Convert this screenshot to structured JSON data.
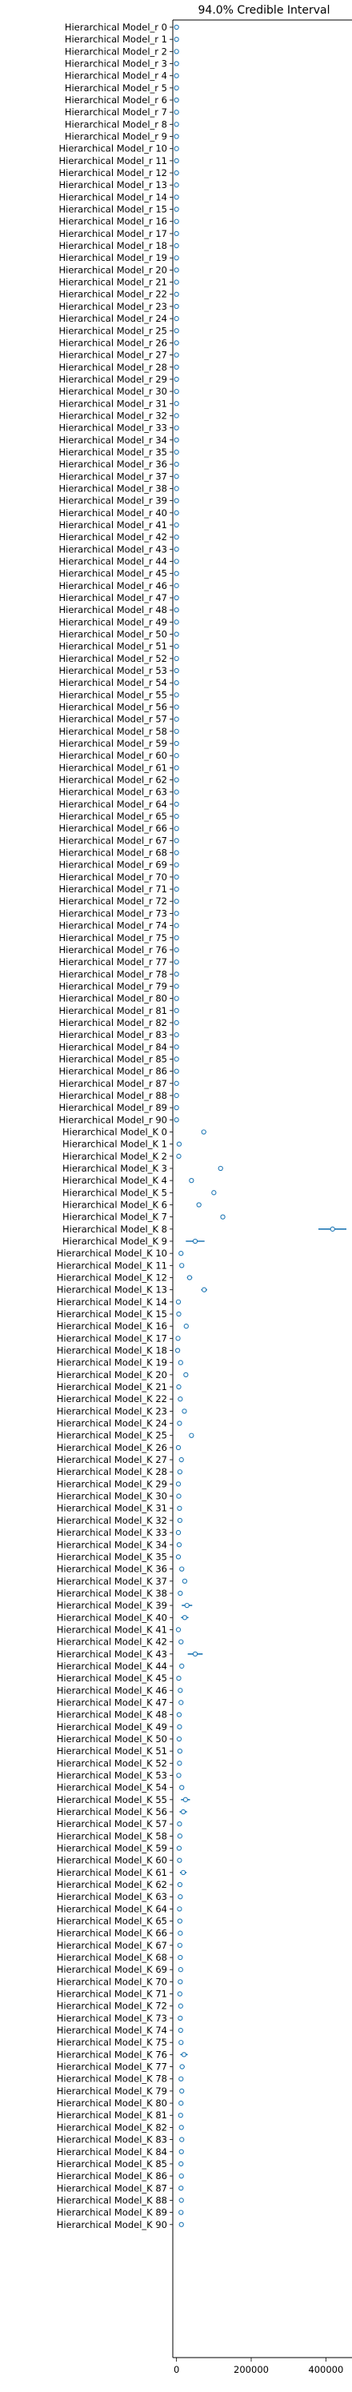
{
  "chart_data": {
    "type": "forest",
    "title": "94.0% Credible Interval",
    "xlabel": "",
    "ylabel": "",
    "xlim": [
      -10000,
      470000
    ],
    "x_ticks": [
      0,
      200000,
      400000
    ],
    "x_tick_labels": [
      "0",
      "200000",
      "400000"
    ],
    "grid": false,
    "colors": {
      "interval": "#1f77b4",
      "point_fill": "#ffffff",
      "axis": "#000000"
    },
    "r_rows": {
      "label_prefix": "Hierarchical Model_r ",
      "count": 91,
      "point": 0,
      "hdi": [
        0,
        0
      ]
    },
    "K_rows": [
      {
        "label": "Hierarchical Model_K 0",
        "point": 73000,
        "hdi": [
          71000,
          75000
        ]
      },
      {
        "label": "Hierarchical Model_K 1",
        "point": 7000,
        "hdi": [
          5000,
          9000
        ]
      },
      {
        "label": "Hierarchical Model_K 2",
        "point": 6000,
        "hdi": [
          4000,
          8000
        ]
      },
      {
        "label": "Hierarchical Model_K 3",
        "point": 118000,
        "hdi": [
          114000,
          122000
        ]
      },
      {
        "label": "Hierarchical Model_K 4",
        "point": 40000,
        "hdi": [
          37000,
          43000
        ]
      },
      {
        "label": "Hierarchical Model_K 5",
        "point": 100000,
        "hdi": [
          96000,
          104000
        ]
      },
      {
        "label": "Hierarchical Model_K 6",
        "point": 60000,
        "hdi": [
          57000,
          63000
        ]
      },
      {
        "label": "Hierarchical Model_K 7",
        "point": 124000,
        "hdi": [
          120000,
          128000
        ]
      },
      {
        "label": "Hierarchical Model_K 8",
        "point": 418000,
        "hdi": [
          380000,
          455000
        ]
      },
      {
        "label": "Hierarchical Model_K 9",
        "point": 50000,
        "hdi": [
          25000,
          75000
        ]
      },
      {
        "label": "Hierarchical Model_K 10",
        "point": 12000,
        "hdi": [
          8000,
          16000
        ]
      },
      {
        "label": "Hierarchical Model_K 11",
        "point": 14000,
        "hdi": [
          9000,
          19000
        ]
      },
      {
        "label": "Hierarchical Model_K 12",
        "point": 35000,
        "hdi": [
          28000,
          42000
        ]
      },
      {
        "label": "Hierarchical Model_K 13",
        "point": 74000,
        "hdi": [
          66000,
          82000
        ]
      },
      {
        "label": "Hierarchical Model_K 14",
        "point": 5000,
        "hdi": [
          2000,
          8000
        ]
      },
      {
        "label": "Hierarchical Model_K 15",
        "point": 6000,
        "hdi": [
          3000,
          9000
        ]
      },
      {
        "label": "Hierarchical Model_K 16",
        "point": 26000,
        "hdi": [
          22000,
          30000
        ]
      },
      {
        "label": "Hierarchical Model_K 17",
        "point": 4000,
        "hdi": [
          2000,
          6000
        ]
      },
      {
        "label": "Hierarchical Model_K 18",
        "point": 3000,
        "hdi": [
          1000,
          5000
        ]
      },
      {
        "label": "Hierarchical Model_K 19",
        "point": 11000,
        "hdi": [
          8000,
          14000
        ]
      },
      {
        "label": "Hierarchical Model_K 20",
        "point": 25000,
        "hdi": [
          21000,
          29000
        ]
      },
      {
        "label": "Hierarchical Model_K 21",
        "point": 6000,
        "hdi": [
          3000,
          9000
        ]
      },
      {
        "label": "Hierarchical Model_K 22",
        "point": 10000,
        "hdi": [
          7000,
          13000
        ]
      },
      {
        "label": "Hierarchical Model_K 23",
        "point": 21000,
        "hdi": [
          17000,
          25000
        ]
      },
      {
        "label": "Hierarchical Model_K 24",
        "point": 8000,
        "hdi": [
          5000,
          11000
        ]
      },
      {
        "label": "Hierarchical Model_K 25",
        "point": 40000,
        "hdi": [
          37000,
          43000
        ]
      },
      {
        "label": "Hierarchical Model_K 26",
        "point": 5000,
        "hdi": [
          3000,
          7000
        ]
      },
      {
        "label": "Hierarchical Model_K 27",
        "point": 13000,
        "hdi": [
          10000,
          16000
        ]
      },
      {
        "label": "Hierarchical Model_K 28",
        "point": 9000,
        "hdi": [
          6000,
          12000
        ]
      },
      {
        "label": "Hierarchical Model_K 29",
        "point": 5000,
        "hdi": [
          3000,
          7000
        ]
      },
      {
        "label": "Hierarchical Model_K 30",
        "point": 6000,
        "hdi": [
          4000,
          8000
        ]
      },
      {
        "label": "Hierarchical Model_K 31",
        "point": 8000,
        "hdi": [
          5000,
          11000
        ]
      },
      {
        "label": "Hierarchical Model_K 32",
        "point": 9000,
        "hdi": [
          6000,
          12000
        ]
      },
      {
        "label": "Hierarchical Model_K 33",
        "point": 5000,
        "hdi": [
          3000,
          7000
        ]
      },
      {
        "label": "Hierarchical Model_K 34",
        "point": 7000,
        "hdi": [
          4000,
          10000
        ]
      },
      {
        "label": "Hierarchical Model_K 35",
        "point": 5000,
        "hdi": [
          3000,
          7000
        ]
      },
      {
        "label": "Hierarchical Model_K 36",
        "point": 14000,
        "hdi": [
          10000,
          18000
        ]
      },
      {
        "label": "Hierarchical Model_K 37",
        "point": 22000,
        "hdi": [
          16000,
          28000
        ]
      },
      {
        "label": "Hierarchical Model_K 38",
        "point": 10000,
        "hdi": [
          6000,
          14000
        ]
      },
      {
        "label": "Hierarchical Model_K 39",
        "point": 28000,
        "hdi": [
          14000,
          42000
        ]
      },
      {
        "label": "Hierarchical Model_K 40",
        "point": 22000,
        "hdi": [
          12000,
          32000
        ]
      },
      {
        "label": "Hierarchical Model_K 41",
        "point": 5000,
        "hdi": [
          2000,
          8000
        ]
      },
      {
        "label": "Hierarchical Model_K 42",
        "point": 12000,
        "hdi": [
          7000,
          17000
        ]
      },
      {
        "label": "Hierarchical Model_K 43",
        "point": 50000,
        "hdi": [
          30000,
          70000
        ]
      },
      {
        "label": "Hierarchical Model_K 44",
        "point": 14000,
        "hdi": [
          8000,
          20000
        ]
      },
      {
        "label": "Hierarchical Model_K 45",
        "point": 6000,
        "hdi": [
          3000,
          9000
        ]
      },
      {
        "label": "Hierarchical Model_K 46",
        "point": 10000,
        "hdi": [
          6000,
          14000
        ]
      },
      {
        "label": "Hierarchical Model_K 47",
        "point": 12000,
        "hdi": [
          7000,
          17000
        ]
      },
      {
        "label": "Hierarchical Model_K 48",
        "point": 7000,
        "hdi": [
          4000,
          10000
        ]
      },
      {
        "label": "Hierarchical Model_K 49",
        "point": 8000,
        "hdi": [
          5000,
          11000
        ]
      },
      {
        "label": "Hierarchical Model_K 50",
        "point": 7000,
        "hdi": [
          4000,
          10000
        ]
      },
      {
        "label": "Hierarchical Model_K 51",
        "point": 9000,
        "hdi": [
          5000,
          13000
        ]
      },
      {
        "label": "Hierarchical Model_K 52",
        "point": 8000,
        "hdi": [
          5000,
          11000
        ]
      },
      {
        "label": "Hierarchical Model_K 53",
        "point": 6000,
        "hdi": [
          3000,
          9000
        ]
      },
      {
        "label": "Hierarchical Model_K 54",
        "point": 14000,
        "hdi": [
          8000,
          20000
        ]
      },
      {
        "label": "Hierarchical Model_K 55",
        "point": 24000,
        "hdi": [
          12000,
          36000
        ]
      },
      {
        "label": "Hierarchical Model_K 56",
        "point": 18000,
        "hdi": [
          8000,
          28000
        ]
      },
      {
        "label": "Hierarchical Model_K 57",
        "point": 8000,
        "hdi": [
          4000,
          12000
        ]
      },
      {
        "label": "Hierarchical Model_K 58",
        "point": 9000,
        "hdi": [
          5000,
          13000
        ]
      },
      {
        "label": "Hierarchical Model_K 59",
        "point": 7000,
        "hdi": [
          4000,
          10000
        ]
      },
      {
        "label": "Hierarchical Model_K 60",
        "point": 8000,
        "hdi": [
          4000,
          12000
        ]
      },
      {
        "label": "Hierarchical Model_K 61",
        "point": 18000,
        "hdi": [
          9000,
          27000
        ]
      },
      {
        "label": "Hierarchical Model_K 62",
        "point": 9000,
        "hdi": [
          5000,
          13000
        ]
      },
      {
        "label": "Hierarchical Model_K 63",
        "point": 10000,
        "hdi": [
          6000,
          14000
        ]
      },
      {
        "label": "Hierarchical Model_K 64",
        "point": 8000,
        "hdi": [
          4000,
          12000
        ]
      },
      {
        "label": "Hierarchical Model_K 65",
        "point": 9000,
        "hdi": [
          5000,
          13000
        ]
      },
      {
        "label": "Hierarchical Model_K 66",
        "point": 10000,
        "hdi": [
          6000,
          14000
        ]
      },
      {
        "label": "Hierarchical Model_K 67",
        "point": 9000,
        "hdi": [
          5000,
          13000
        ]
      },
      {
        "label": "Hierarchical Model_K 68",
        "point": 10000,
        "hdi": [
          6000,
          14000
        ]
      },
      {
        "label": "Hierarchical Model_K 69",
        "point": 11000,
        "hdi": [
          6000,
          16000
        ]
      },
      {
        "label": "Hierarchical Model_K 70",
        "point": 10000,
        "hdi": [
          6000,
          14000
        ]
      },
      {
        "label": "Hierarchical Model_K 71",
        "point": 9000,
        "hdi": [
          5000,
          13000
        ]
      },
      {
        "label": "Hierarchical Model_K 72",
        "point": 11000,
        "hdi": [
          6000,
          16000
        ]
      },
      {
        "label": "Hierarchical Model_K 73",
        "point": 10000,
        "hdi": [
          6000,
          14000
        ]
      },
      {
        "label": "Hierarchical Model_K 74",
        "point": 11000,
        "hdi": [
          6000,
          16000
        ]
      },
      {
        "label": "Hierarchical Model_K 75",
        "point": 12000,
        "hdi": [
          7000,
          17000
        ]
      },
      {
        "label": "Hierarchical Model_K 76",
        "point": 20000,
        "hdi": [
          10000,
          30000
        ]
      },
      {
        "label": "Hierarchical Model_K 77",
        "point": 15000,
        "hdi": [
          8000,
          22000
        ]
      },
      {
        "label": "Hierarchical Model_K 78",
        "point": 12000,
        "hdi": [
          7000,
          17000
        ]
      },
      {
        "label": "Hierarchical Model_K 79",
        "point": 14000,
        "hdi": [
          8000,
          20000
        ]
      },
      {
        "label": "Hierarchical Model_K 80",
        "point": 12000,
        "hdi": [
          7000,
          17000
        ]
      },
      {
        "label": "Hierarchical Model_K 81",
        "point": 11000,
        "hdi": [
          6000,
          16000
        ]
      },
      {
        "label": "Hierarchical Model_K 82",
        "point": 13000,
        "hdi": [
          7000,
          19000
        ]
      },
      {
        "label": "Hierarchical Model_K 83",
        "point": 14000,
        "hdi": [
          8000,
          20000
        ]
      },
      {
        "label": "Hierarchical Model_K 84",
        "point": 13000,
        "hdi": [
          7000,
          19000
        ]
      },
      {
        "label": "Hierarchical Model_K 85",
        "point": 12000,
        "hdi": [
          7000,
          17000
        ]
      },
      {
        "label": "Hierarchical Model_K 86",
        "point": 13000,
        "hdi": [
          7000,
          19000
        ]
      },
      {
        "label": "Hierarchical Model_K 87",
        "point": 12000,
        "hdi": [
          7000,
          17000
        ]
      },
      {
        "label": "Hierarchical Model_K 88",
        "point": 13000,
        "hdi": [
          7000,
          19000
        ]
      },
      {
        "label": "Hierarchical Model_K 89",
        "point": 12000,
        "hdi": [
          7000,
          17000
        ]
      },
      {
        "label": "Hierarchical Model_K 90",
        "point": 13000,
        "hdi": [
          7000,
          19000
        ]
      }
    ]
  }
}
